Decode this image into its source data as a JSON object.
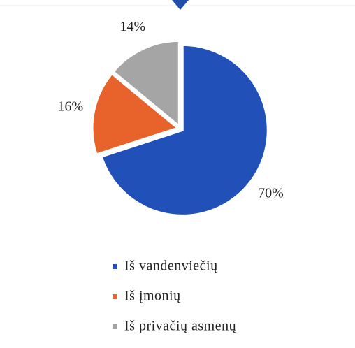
{
  "chart_data": {
    "type": "pie",
    "categories": [
      "Iš vandenviečių",
      "Iš įmonių",
      "Iš privačių asmenų"
    ],
    "values": [
      70,
      16,
      14
    ],
    "value_labels": [
      "70%",
      "16%",
      "14%"
    ],
    "colors": [
      "#2150b8",
      "#e8632b",
      "#a5a5a5"
    ],
    "legend": "bottom"
  }
}
